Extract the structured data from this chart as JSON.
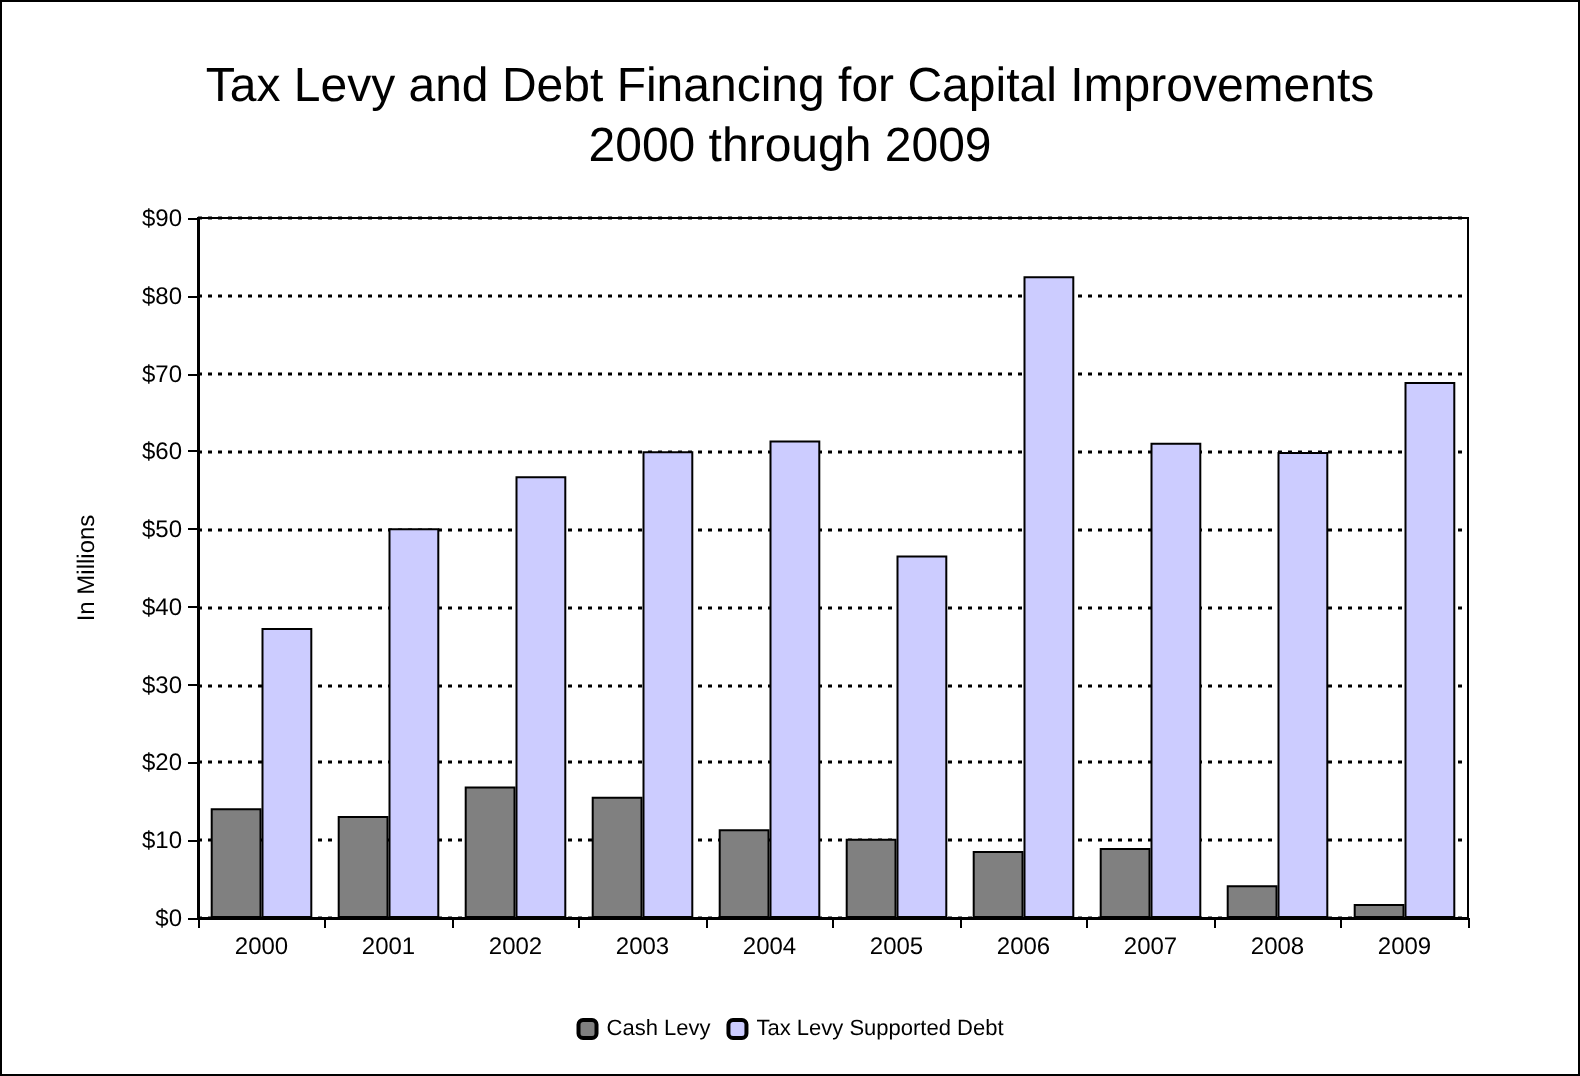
{
  "chart_data": {
    "type": "bar",
    "title": "Tax Levy and Debt Financing for Capital Improvements\n2000 through 2009",
    "ylabel": "In Millions",
    "categories": [
      "2000",
      "2001",
      "2002",
      "2003",
      "2004",
      "2005",
      "2006",
      "2007",
      "2008",
      "2009"
    ],
    "series": [
      {
        "name": "Cash Levy",
        "color": "#808080",
        "values": [
          14.1,
          13.1,
          16.9,
          15.6,
          11.4,
          10.2,
          8.6,
          9.0,
          4.2,
          1.8
        ]
      },
      {
        "name": "Tax Levy Supported Debt",
        "color": "#ccccff",
        "values": [
          37.3,
          50.1,
          56.8,
          60.0,
          61.4,
          46.6,
          82.5,
          61.1,
          59.9,
          68.9
        ]
      }
    ],
    "ylim": [
      0,
      90
    ],
    "yticks": [
      {
        "value": 0,
        "label": "$0"
      },
      {
        "value": 10,
        "label": "$10"
      },
      {
        "value": 20,
        "label": "$20"
      },
      {
        "value": 30,
        "label": "$30"
      },
      {
        "value": 40,
        "label": "$40"
      },
      {
        "value": 50,
        "label": "$50"
      },
      {
        "value": 60,
        "label": "$60"
      },
      {
        "value": 70,
        "label": "$70"
      },
      {
        "value": 80,
        "label": "$80"
      },
      {
        "value": 90,
        "label": "$90"
      }
    ],
    "grid": "y",
    "legend": "bottom"
  }
}
